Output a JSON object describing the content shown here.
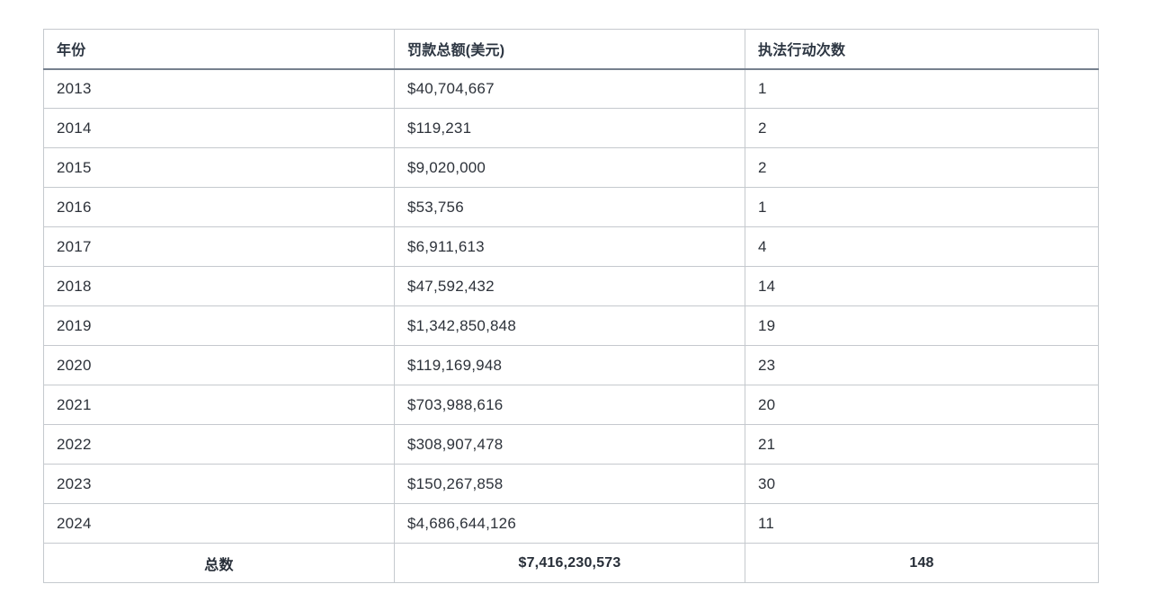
{
  "colors": {
    "text": "#2d323a",
    "row_border": "#c5c9ce",
    "header_separator": "#76808e",
    "background": "#ffffff"
  },
  "chart_data": {
    "type": "table",
    "columns": [
      "年份",
      "罚款总额(美元)",
      "执法行动次数"
    ],
    "rows": [
      {
        "year": "2013",
        "fine_total_usd": "$40,704,667",
        "enforcement_actions": "1"
      },
      {
        "year": "2014",
        "fine_total_usd": "$119,231",
        "enforcement_actions": "2"
      },
      {
        "year": "2015",
        "fine_total_usd": "$9,020,000",
        "enforcement_actions": "2"
      },
      {
        "year": "2016",
        "fine_total_usd": "$53,756",
        "enforcement_actions": "1"
      },
      {
        "year": "2017",
        "fine_total_usd": "$6,911,613",
        "enforcement_actions": "4"
      },
      {
        "year": "2018",
        "fine_total_usd": "$47,592,432",
        "enforcement_actions": "14"
      },
      {
        "year": "2019",
        "fine_total_usd": "$1,342,850,848",
        "enforcement_actions": "19"
      },
      {
        "year": "2020",
        "fine_total_usd": "$119,169,948",
        "enforcement_actions": "23"
      },
      {
        "year": "2021",
        "fine_total_usd": "$703,988,616",
        "enforcement_actions": "20"
      },
      {
        "year": "2022",
        "fine_total_usd": "$308,907,478",
        "enforcement_actions": "21"
      },
      {
        "year": "2023",
        "fine_total_usd": "$150,267,858",
        "enforcement_actions": "30"
      },
      {
        "year": "2024",
        "fine_total_usd": "$4,686,644,126",
        "enforcement_actions": "11"
      }
    ],
    "total_row": {
      "label": "总数",
      "fine_total_usd": "$7,416,230,573",
      "enforcement_actions": "148"
    }
  }
}
